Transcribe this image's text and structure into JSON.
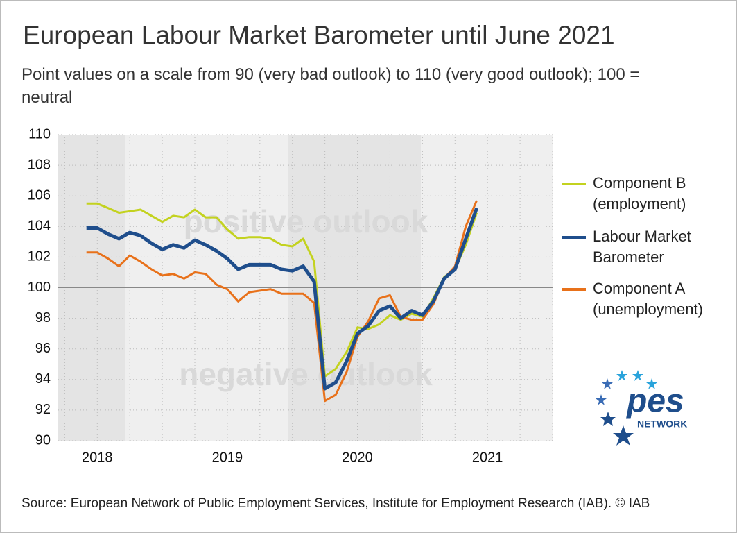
{
  "chart_data": {
    "type": "line",
    "title": "European Labour Market Barometer until June 2021",
    "subtitle": "Point values on a scale from 90 (very bad outlook) to 110 (very good outlook); 100 = neutral",
    "annotations": [
      "positive outlook",
      "negative outlook"
    ],
    "x": [
      2018.417,
      2018.5,
      2018.583,
      2018.667,
      2018.75,
      2018.833,
      2018.917,
      2019.0,
      2019.083,
      2019.167,
      2019.25,
      2019.333,
      2019.417,
      2019.5,
      2019.583,
      2019.667,
      2019.75,
      2019.833,
      2019.917,
      2020.0,
      2020.083,
      2020.167,
      2020.25,
      2020.333,
      2020.417,
      2020.5,
      2020.583,
      2020.667,
      2020.75,
      2020.833,
      2020.917,
      2021.0,
      2021.083,
      2021.167,
      2021.25,
      2021.333,
      2021.417
    ],
    "series": [
      {
        "name": "Component B (employment)",
        "color": "#c3d21f",
        "values": [
          105.5,
          105.5,
          105.2,
          104.9,
          105.0,
          105.1,
          104.7,
          104.3,
          104.7,
          104.6,
          105.1,
          104.6,
          104.6,
          103.8,
          103.2,
          103.3,
          103.3,
          103.2,
          102.8,
          102.7,
          103.2,
          101.7,
          94.2,
          94.7,
          95.8,
          97.4,
          97.3,
          97.6,
          98.2,
          97.9,
          98.3,
          98.1,
          99.3,
          100.7,
          101.2,
          102.8,
          104.9
        ]
      },
      {
        "name": "Labour Market Barometer",
        "color": "#1f4e8c",
        "values": [
          103.9,
          103.9,
          103.5,
          103.2,
          103.6,
          103.4,
          102.9,
          102.5,
          102.8,
          102.6,
          103.1,
          102.8,
          102.4,
          101.9,
          101.2,
          101.5,
          101.5,
          101.5,
          101.2,
          101.1,
          101.4,
          100.4,
          93.4,
          93.8,
          95.2,
          97.0,
          97.5,
          98.5,
          98.8,
          98.0,
          98.5,
          98.2,
          99.1,
          100.6,
          101.2,
          103.2,
          105.2
        ]
      },
      {
        "name": "Component A (unemployment)",
        "color": "#e8711a",
        "values": [
          102.3,
          102.3,
          101.9,
          101.4,
          102.1,
          101.7,
          101.2,
          100.8,
          100.9,
          100.6,
          101.0,
          100.9,
          100.2,
          99.9,
          99.1,
          99.7,
          99.8,
          99.9,
          99.6,
          99.6,
          99.6,
          99.0,
          92.6,
          93.0,
          94.5,
          96.8,
          97.8,
          99.3,
          99.5,
          98.1,
          97.9,
          97.9,
          98.9,
          100.6,
          101.4,
          104.0,
          105.7
        ]
      }
    ],
    "xlim": [
      2018.2,
      2022.0
    ],
    "xticks": [
      {
        "value": 2018.5,
        "label": "2018"
      },
      {
        "value": 2019.5,
        "label": "2019"
      },
      {
        "value": 2020.5,
        "label": "2020"
      },
      {
        "value": 2021.5,
        "label": "2021"
      }
    ],
    "ylim": [
      90,
      110
    ],
    "yticks": [
      90,
      92,
      94,
      96,
      98,
      100,
      102,
      104,
      106,
      108,
      110
    ],
    "reference_line": 100,
    "grid": true,
    "legend": "right",
    "source": "Source: European Network of Public Employment Services, Institute for Employment Research (IAB).  © IAB",
    "logo": {
      "text": "pes",
      "subtext": "NETWORK"
    }
  }
}
